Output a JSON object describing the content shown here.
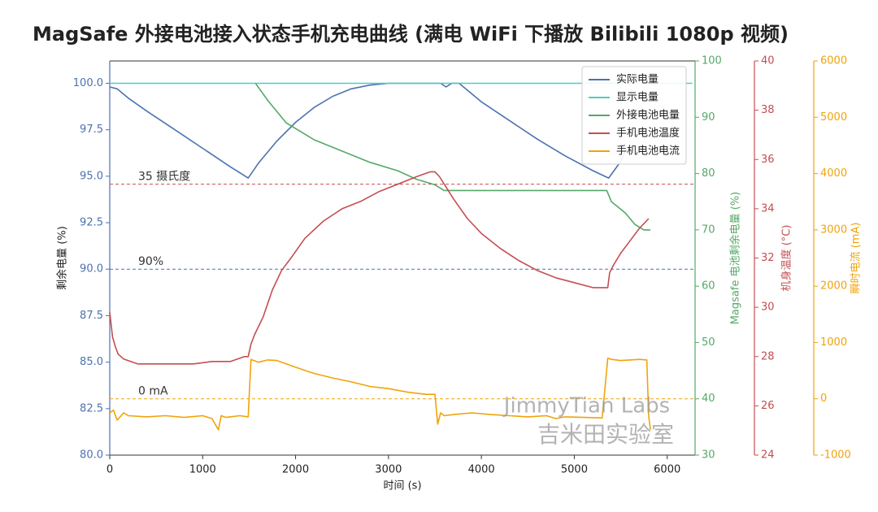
{
  "chart_data": {
    "type": "line",
    "title": "MagSafe 外接电池接入状态手机充电曲线 (满电 WiFi 下播放 Bilibili 1080p 视频)",
    "xlabel": "时间 (s)",
    "xlim": [
      0,
      6300
    ],
    "xticks": [
      0,
      1000,
      2000,
      3000,
      4000,
      5000,
      6000
    ],
    "axes": {
      "left": {
        "label": "剩余电量 (%)",
        "ylim": [
          80,
          101.2
        ],
        "ticks": [
          80.0,
          82.5,
          85.0,
          87.5,
          90.0,
          92.5,
          95.0,
          97.5,
          100.0
        ],
        "tick_labels": [
          "80.0",
          "82.5",
          "85.0",
          "87.5",
          "90.0",
          "92.5",
          "95.0",
          "97.5",
          "100.0"
        ],
        "color": "#4c72b0"
      },
      "right1": {
        "label": "Magsafe 电池剩余电量 (%)",
        "ylim": [
          30,
          100
        ],
        "ticks": [
          30,
          40,
          50,
          60,
          70,
          80,
          90,
          100
        ],
        "tick_labels": [
          "30",
          "40",
          "50",
          "60",
          "70",
          "80",
          "90",
          "100"
        ],
        "color": "#55a868"
      },
      "right2": {
        "label": "机身温度 (°C)",
        "ylim": [
          24,
          40
        ],
        "ticks": [
          24,
          26,
          28,
          30,
          32,
          34,
          36,
          38,
          40
        ],
        "tick_labels": [
          "24",
          "26",
          "28",
          "30",
          "32",
          "34",
          "36",
          "38",
          "40"
        ],
        "color": "#c44e52"
      },
      "right3": {
        "label": "瞬时电流 (mA)",
        "ylim": [
          -1000,
          6000
        ],
        "ticks": [
          -1000,
          0,
          1000,
          2000,
          3000,
          4000,
          5000,
          6000
        ],
        "tick_labels": [
          "-1000",
          "0",
          "1000",
          "2000",
          "3000",
          "4000",
          "5000",
          "6000"
        ],
        "color": "#f0a30a"
      }
    },
    "series": [
      {
        "name": "实际电量",
        "axis": "left",
        "color": "#4c72b0",
        "x": [
          0,
          80,
          200,
          400,
          700,
          1000,
          1300,
          1490,
          1600,
          1800,
          2000,
          2200,
          2400,
          2600,
          2800,
          3000,
          3200,
          3400,
          3560,
          3620,
          3680,
          3760,
          4000,
          4300,
          4600,
          4900,
          5200,
          5370,
          5500,
          5560
        ],
        "y": [
          99.8,
          99.7,
          99.2,
          98.5,
          97.5,
          96.5,
          95.5,
          94.9,
          95.7,
          96.9,
          97.9,
          98.7,
          99.3,
          99.7,
          99.9,
          100.0,
          100.0,
          100.0,
          100.0,
          99.8,
          100.0,
          100.0,
          99.0,
          98.0,
          97.0,
          96.1,
          95.3,
          94.9,
          95.8,
          96.5
        ]
      },
      {
        "name": "显示电量",
        "axis": "left",
        "color": "#4ecdc4",
        "x": [
          0,
          6270
        ],
        "y": [
          100,
          100
        ]
      },
      {
        "name": "外接电池电量",
        "axis": "right1",
        "color": "#55a868",
        "x": [
          1570,
          1700,
          1900,
          2200,
          2500,
          2800,
          3100,
          3300,
          3500,
          3600,
          4000,
          4500,
          5000,
          5350,
          5400,
          5550,
          5650,
          5750,
          5820
        ],
        "y": [
          96,
          93,
          89,
          86,
          84,
          82,
          80.5,
          79,
          78,
          77,
          77,
          77,
          77,
          77,
          75,
          73,
          71,
          70,
          70
        ]
      },
      {
        "name": "手机电池温度",
        "axis": "right2",
        "color": "#c44e52",
        "x": [
          0,
          30,
          60,
          90,
          150,
          300,
          500,
          700,
          900,
          1100,
          1300,
          1450,
          1490,
          1520,
          1560,
          1650,
          1750,
          1850,
          1950,
          2100,
          2300,
          2500,
          2700,
          2900,
          3100,
          3300,
          3450,
          3500,
          3550,
          3600,
          3700,
          3850,
          4000,
          4200,
          4400,
          4600,
          4800,
          5000,
          5200,
          5300,
          5360,
          5380,
          5420,
          5500,
          5600,
          5700,
          5800
        ],
        "y": [
          29.8,
          28.8,
          28.4,
          28.1,
          27.9,
          27.7,
          27.7,
          27.7,
          27.7,
          27.8,
          27.8,
          28.0,
          28.0,
          28.5,
          28.9,
          29.6,
          30.7,
          31.5,
          32.0,
          32.8,
          33.5,
          34.0,
          34.3,
          34.7,
          35.0,
          35.3,
          35.5,
          35.5,
          35.3,
          35.0,
          34.4,
          33.6,
          33.0,
          32.4,
          31.9,
          31.5,
          31.2,
          31.0,
          30.8,
          30.8,
          30.8,
          31.4,
          31.7,
          32.2,
          32.7,
          33.2,
          33.6
        ]
      },
      {
        "name": "手机电池电流",
        "axis": "right3",
        "color": "#f0a30a",
        "x": [
          0,
          40,
          80,
          150,
          200,
          400,
          600,
          800,
          1000,
          1100,
          1170,
          1200,
          1250,
          1400,
          1490,
          1520,
          1600,
          1700,
          1800,
          2000,
          2200,
          2400,
          2600,
          2800,
          3000,
          3200,
          3400,
          3500,
          3530,
          3560,
          3600,
          3700,
          3900,
          4100,
          4300,
          4500,
          4700,
          4800,
          4900,
          5100,
          5300,
          5360,
          5400,
          5500,
          5600,
          5700,
          5780,
          5800,
          5820
        ],
        "y": [
          -250,
          -200,
          -380,
          -250,
          -300,
          -320,
          -300,
          -330,
          -300,
          -350,
          -550,
          -300,
          -330,
          -300,
          -320,
          700,
          650,
          690,
          680,
          560,
          450,
          370,
          300,
          220,
          180,
          120,
          80,
          80,
          -450,
          -250,
          -300,
          -280,
          -250,
          -280,
          -300,
          -320,
          -300,
          -350,
          -320,
          -330,
          -340,
          720,
          700,
          680,
          690,
          700,
          690,
          -300,
          -550
        ]
      }
    ],
    "hlines": [
      {
        "axis": "right2",
        "y": 35,
        "color": "#c44e52",
        "label": "35 摄氏度"
      },
      {
        "axis": "left",
        "y": 90,
        "color": "#4c72b0",
        "label": "90%"
      },
      {
        "axis": "right3",
        "y": 0,
        "color": "#f0a30a",
        "label": "0 mA"
      }
    ],
    "legend": {
      "placement": "top-right"
    },
    "grid": false,
    "watermark": [
      "JimmyTian Labs",
      "吉米田实验室"
    ]
  }
}
